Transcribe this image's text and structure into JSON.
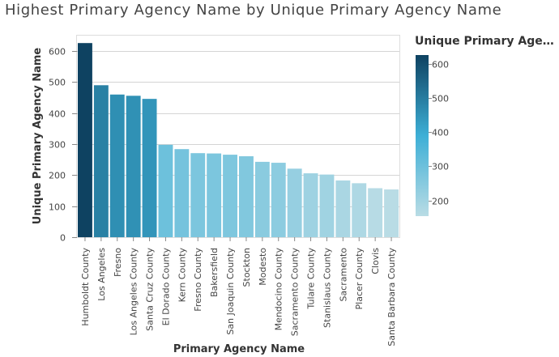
{
  "chart_data": {
    "type": "bar",
    "title": "Highest Primary Agency Name by Unique Primary Agency Name",
    "xlabel": "Primary Agency Name",
    "ylabel": "Unique Primary Agency Name",
    "categories": [
      "Humboldt County",
      "Los Angeles",
      "Fresno",
      "Los Angeles County",
      "Santa Cruz County",
      "El Dorado County",
      "Kern County",
      "Fresno County",
      "Bakersfield",
      "San Joaquin County",
      "Stockton",
      "Modesto",
      "Mendocino County",
      "Sacramento County",
      "Tulare County",
      "Stanislaus County",
      "Sacramento",
      "Placer County",
      "Clovis",
      "Santa Barbara County"
    ],
    "values": [
      626,
      490,
      460,
      456,
      446,
      298,
      284,
      271,
      270,
      266,
      261,
      243,
      240,
      221,
      206,
      202,
      183,
      174,
      158,
      154
    ],
    "ylim": [
      0,
      650
    ],
    "yticks": [
      0,
      100,
      200,
      300,
      400,
      500,
      600
    ],
    "grid": true,
    "legend": {
      "title": "Unique Primary Age…",
      "position": "right",
      "ticks": [
        200,
        300,
        400,
        500,
        600
      ],
      "range": [
        154,
        626
      ],
      "colors": [
        "#b9dce5",
        "#3dafd6",
        "#0e4261"
      ]
    }
  }
}
